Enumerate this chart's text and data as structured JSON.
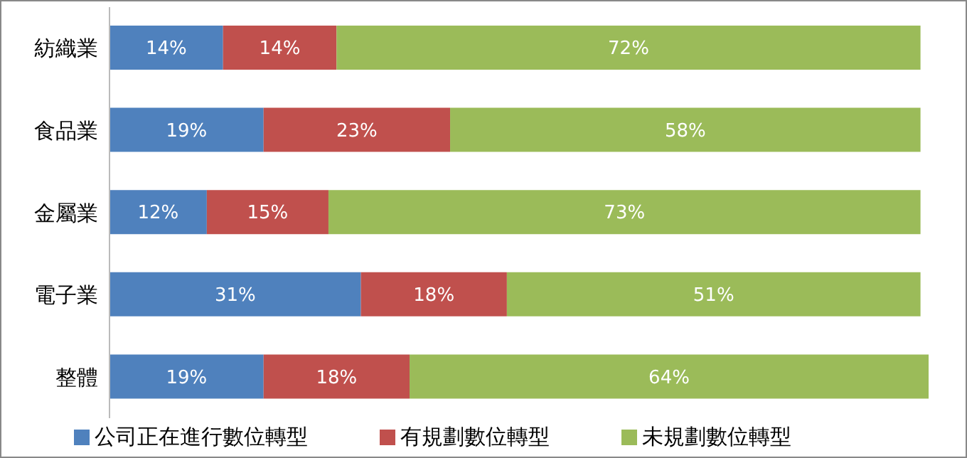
{
  "chart_data": {
    "type": "bar",
    "orientation": "horizontal",
    "stacked": true,
    "grid": false,
    "legend": "bottom",
    "tick_labels": "y",
    "categories": [
      "紡織業",
      "食品業",
      "金屬業",
      "電子業",
      "整體"
    ],
    "series": [
      {
        "name": "公司正在進行數位轉型",
        "color": "#4f81bd",
        "values": [
          14,
          19,
          12,
          31,
          19
        ],
        "value_labels": [
          "14%",
          "19%",
          "12%",
          "31%",
          "19%"
        ]
      },
      {
        "name": "有規劃數位轉型",
        "color": "#c0504d",
        "values": [
          14,
          23,
          15,
          18,
          18
        ],
        "value_labels": [
          "14%",
          "23%",
          "15%",
          "18%",
          "18%"
        ]
      },
      {
        "name": "未規劃數位轉型",
        "color": "#9bbb59",
        "values": [
          72,
          58,
          73,
          51,
          64
        ],
        "value_labels": [
          "72%",
          "58%",
          "73%",
          "51%",
          "64%"
        ]
      }
    ]
  }
}
